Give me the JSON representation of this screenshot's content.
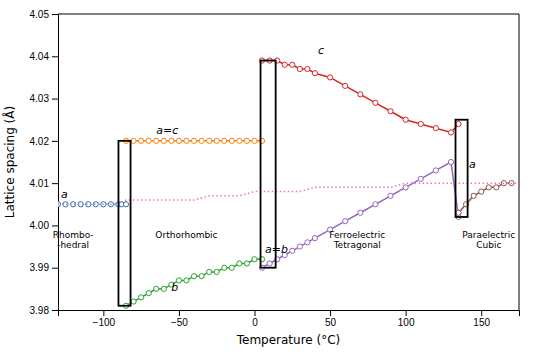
{
  "chart_data": {
    "type": "line",
    "xlabel": "Temperature (°C)",
    "ylabel": "Lattice spacing (Å)",
    "xlim": [
      -130,
      175
    ],
    "ylim": [
      3.98,
      4.05
    ],
    "xticks": [
      {
        "value": -100,
        "label": "−100"
      },
      {
        "value": -50,
        "label": "−50"
      },
      0,
      50,
      100,
      150
    ],
    "yticks": [
      3.98,
      3.99,
      {
        "value": 4.0,
        "label": "4.00"
      },
      4.01,
      4.02,
      4.03,
      4.04,
      4.05
    ],
    "grid": false,
    "series": [
      {
        "line_style": "dotted",
        "marker": "circle",
        "x": [
          -130,
          -125,
          -120,
          -115,
          -110,
          -105,
          -100,
          -95,
          -90,
          -88,
          -85
        ],
        "values": [
          4.005,
          4.005,
          4.005,
          4.005,
          4.005,
          4.005,
          4.005,
          4.005,
          4.005,
          4.005,
          4.005
        ]
      },
      {
        "line_style": "solid",
        "marker": "circle",
        "x": [
          -85,
          -80,
          -75,
          -70,
          -65,
          -60,
          -55,
          -50,
          -45,
          -40,
          -35,
          -30,
          -25,
          -20,
          -15,
          -10,
          -5,
          0,
          5
        ],
        "values": [
          4.02,
          4.02,
          4.02,
          4.02,
          4.02,
          4.02,
          4.02,
          4.02,
          4.02,
          4.02,
          4.02,
          4.02,
          4.02,
          4.02,
          4.02,
          4.02,
          4.02,
          4.02,
          4.02
        ]
      },
      {
        "line_style": "solid",
        "marker": "circle",
        "x": [
          -85,
          -80,
          -75,
          -70,
          -65,
          -60,
          -55,
          -50,
          -45,
          -40,
          -35,
          -30,
          -25,
          -20,
          -15,
          -10,
          -5,
          0,
          5
        ],
        "values": [
          3.981,
          3.982,
          3.983,
          3.984,
          3.985,
          3.985,
          3.986,
          3.987,
          3.987,
          3.988,
          3.988,
          3.989,
          3.989,
          3.99,
          3.99,
          3.991,
          3.991,
          3.992,
          3.992
        ]
      },
      {
        "line_style": "solid",
        "marker": "circle",
        "x": [
          5,
          10,
          15,
          20,
          25,
          30,
          35,
          40,
          50,
          60,
          70,
          80,
          90,
          100,
          110,
          120,
          130,
          135
        ],
        "values": [
          4.039,
          4.039,
          4.039,
          4.038,
          4.038,
          4.037,
          4.037,
          4.036,
          4.035,
          4.033,
          4.031,
          4.029,
          4.027,
          4.025,
          4.024,
          4.023,
          4.022,
          4.024
        ]
      },
      {
        "line_style": "solid",
        "marker": "circle",
        "x": [
          5,
          10,
          15,
          20,
          25,
          30,
          35,
          40,
          50,
          60,
          70,
          80,
          90,
          100,
          110,
          120,
          130,
          135
        ],
        "values": [
          3.99,
          3.991,
          3.992,
          3.993,
          3.994,
          3.995,
          3.996,
          3.997,
          3.999,
          4.001,
          4.003,
          4.005,
          4.007,
          4.009,
          4.011,
          4.013,
          4.015,
          4.002
        ]
      },
      {
        "line_style": "solid",
        "marker": "circle",
        "x": [
          135,
          140,
          145,
          150,
          155,
          160,
          165,
          170
        ],
        "values": [
          4.003,
          4.005,
          4.007,
          4.008,
          4.009,
          4.009,
          4.01,
          4.01
        ]
      },
      {
        "line_style": "dotted",
        "marker": "none",
        "x": [
          -130,
          -120,
          -110,
          -100,
          -90,
          -85,
          -70,
          -60,
          -50,
          -40,
          -30,
          -20,
          -10,
          0,
          10,
          20,
          30,
          40,
          50,
          60,
          70,
          80,
          90,
          100,
          110,
          120,
          130,
          135,
          145,
          155,
          165,
          175
        ],
        "values": [
          4.005,
          4.005,
          4.005,
          4.005,
          4.005,
          4.006,
          4.006,
          4.006,
          4.006,
          4.006,
          4.007,
          4.007,
          4.007,
          4.008,
          4.008,
          4.008,
          4.008,
          4.009,
          4.009,
          4.009,
          4.009,
          4.009,
          4.009,
          4.01,
          4.01,
          4.01,
          4.01,
          4.01,
          4.01,
          4.01,
          4.01,
          4.01
        ]
      }
    ],
    "transitions": [
      {
        "x1": -90,
        "x2": -82,
        "y1": 3.981,
        "y2": 4.02
      },
      {
        "x1": 4,
        "x2": 14,
        "y1": 3.99,
        "y2": 4.039
      },
      {
        "x1": 133,
        "x2": 141,
        "y1": 4.002,
        "y2": 4.025
      }
    ],
    "annotations": [
      {
        "text": "Rhombo-\n-hedral",
        "x": -120,
        "y": 3.999
      },
      {
        "text": "Orthorhombic",
        "x": -45,
        "y": 3.999
      },
      {
        "text": "Ferroelectric\nTetragonal",
        "x": 68,
        "y": 3.999
      },
      {
        "text": "Paraelectric\nCubic",
        "x": 155,
        "y": 3.999
      }
    ],
    "curve_labels": [
      {
        "text": "c",
        "x": 42,
        "y": 4.04
      },
      {
        "text": "a=c",
        "x": -65,
        "y": 4.021
      },
      {
        "text": "a",
        "x": -128,
        "y": 4.006
      },
      {
        "text": "b",
        "x": -55,
        "y": 3.984
      },
      {
        "text": "a=b",
        "x": 7,
        "y": 3.993
      },
      {
        "text": "a",
        "x": 142,
        "y": 4.013
      }
    ]
  }
}
